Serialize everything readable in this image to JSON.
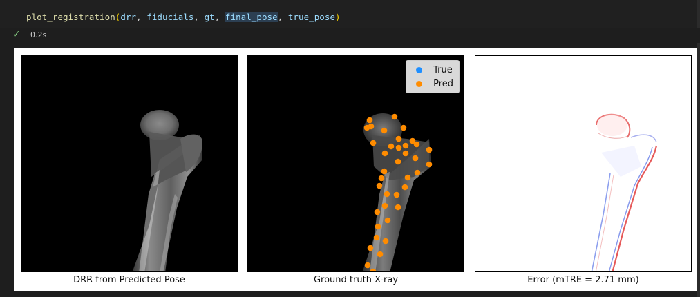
{
  "cell": {
    "code": {
      "fn": "plot_registration",
      "args": [
        "drr",
        "fiducials",
        "gt",
        "final_pose",
        "true_pose"
      ]
    },
    "status_icon": "check-icon",
    "exec_time": "0.2s"
  },
  "output": {
    "panels": [
      {
        "title": "DRR from Predicted Pose"
      },
      {
        "title": "Ground truth X-ray"
      },
      {
        "title": "Error (mTRE = 2.71 mm)"
      }
    ],
    "legend": {
      "items": [
        {
          "label": "True",
          "color": "#1f8fff"
        },
        {
          "label": "Pred",
          "color": "#ff8c00"
        }
      ]
    }
  },
  "colors": {
    "editor_bg": "#1e1e1e",
    "success": "#89d185",
    "fiducial_pred": "#ff8c00",
    "fiducial_true": "#1f8fff",
    "error_positive": "#e03030",
    "error_negative": "#3050e0"
  }
}
